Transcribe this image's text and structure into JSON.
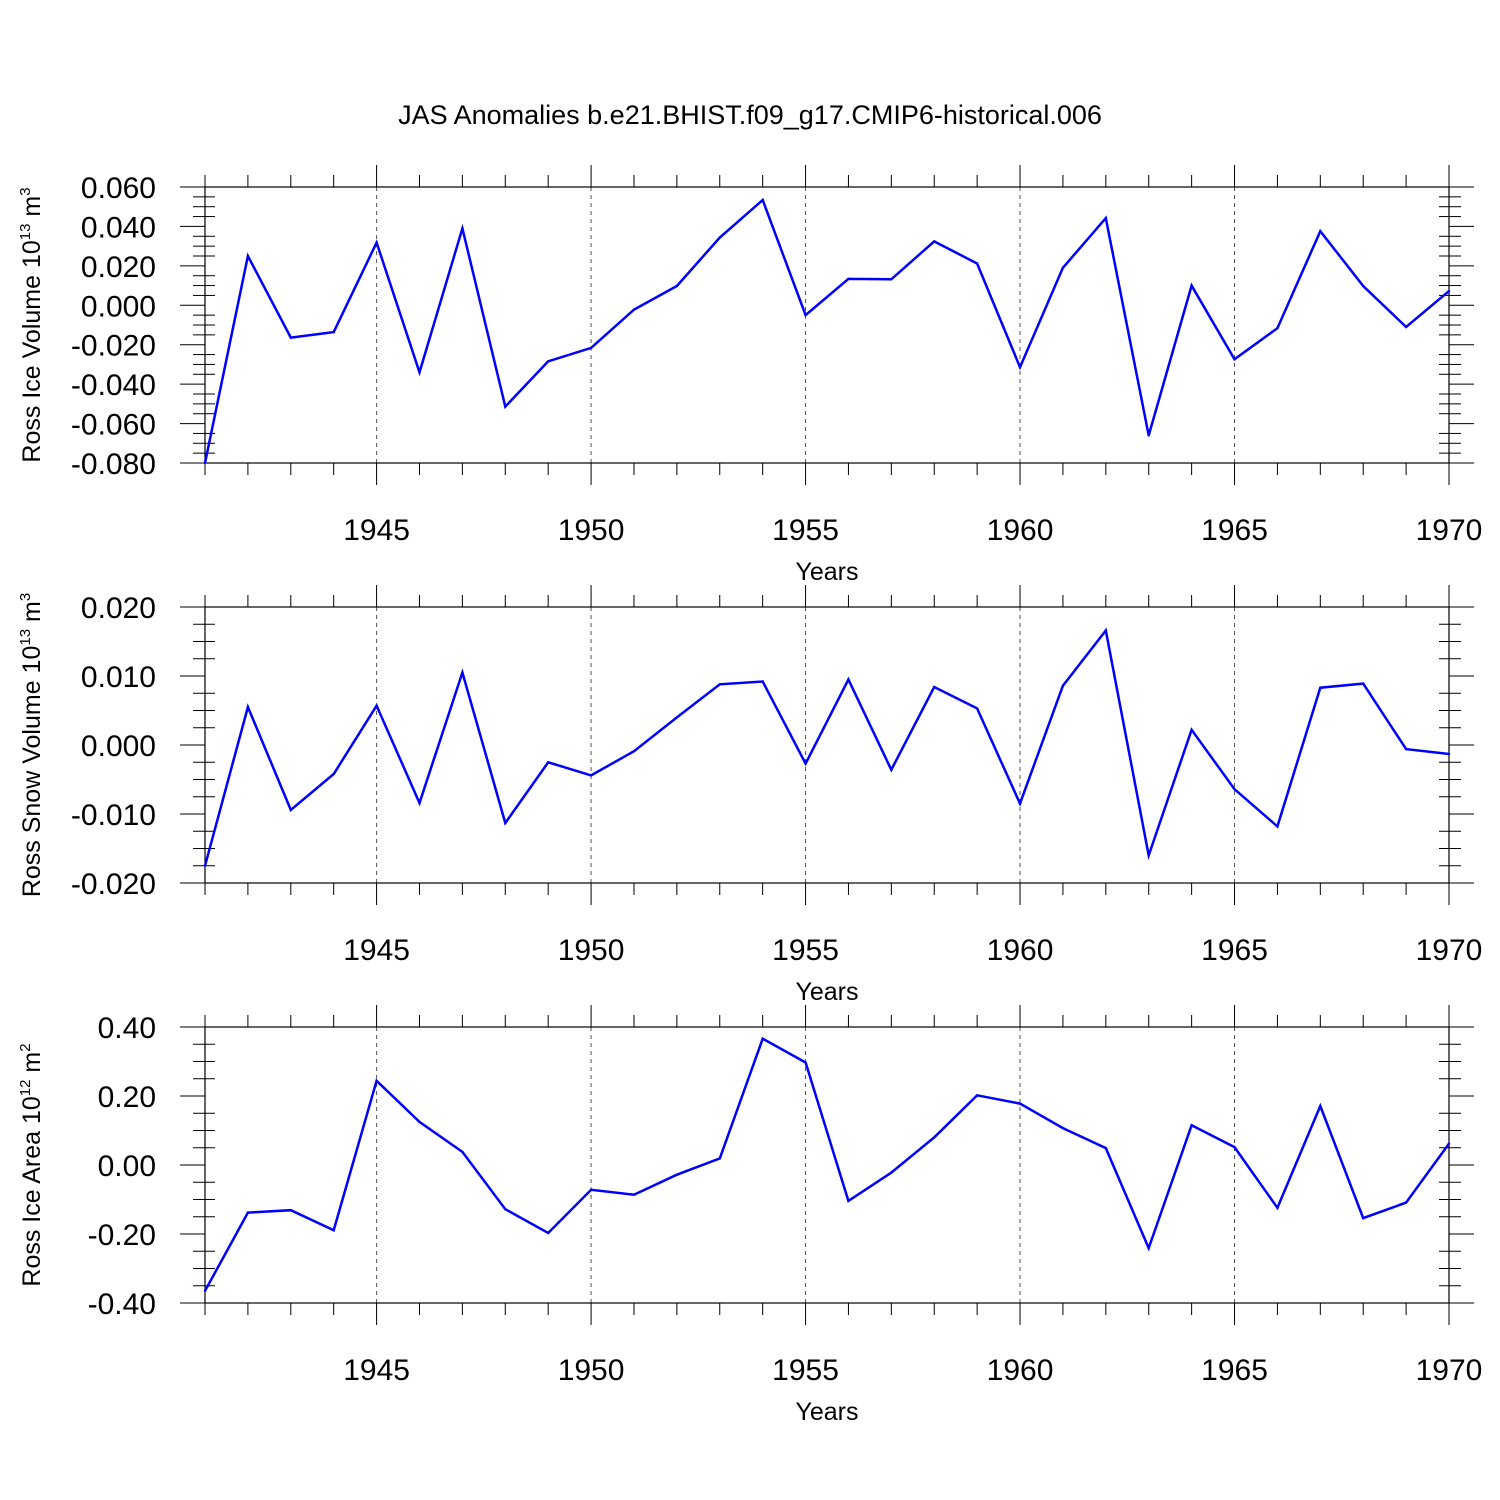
{
  "title": "JAS Anomalies b.e21.BHIST.f09_g17.CMIP6-historical.006",
  "colors": {
    "line": "#0000ff",
    "axis": "#000000",
    "grid": "#555555",
    "background": "#ffffff"
  },
  "chart_data": [
    {
      "type": "line",
      "ylabel": "Ross Ice Volume 10",
      "ylabel_exp": "13",
      "ylabel_unit": " m",
      "ylabel_unit_exp": "3",
      "xlabel": "Years",
      "xlim": [
        1941,
        1970
      ],
      "ylim": [
        -0.08,
        0.06
      ],
      "yticks": [
        -0.08,
        -0.06,
        -0.04,
        -0.02,
        0.0,
        0.02,
        0.04,
        0.06
      ],
      "ytick_labels": [
        "-0.080",
        "-0.060",
        "-0.040",
        "-0.020",
        "0.000",
        "0.020",
        "0.040",
        "0.060"
      ],
      "yminor_step": 0.005,
      "xticks": [
        1945,
        1950,
        1955,
        1960,
        1965,
        1970
      ],
      "xtick_labels": [
        "1945",
        "1950",
        "1955",
        "1960",
        "1965",
        "1970"
      ],
      "grid_x": [
        1945,
        1950,
        1955,
        1960,
        1965
      ],
      "series": [
        {
          "name": "Ross Ice Volume",
          "x": [
            1941,
            1942,
            1943,
            1944,
            1945,
            1946,
            1947,
            1948,
            1949,
            1950,
            1951,
            1952,
            1953,
            1954,
            1955,
            1956,
            1957,
            1958,
            1959,
            1960,
            1961,
            1962,
            1963,
            1964,
            1965,
            1966,
            1967,
            1968,
            1969,
            1970
          ],
          "values": [
            -0.08,
            0.025,
            -0.0164,
            -0.0136,
            0.0318,
            -0.034,
            0.039,
            -0.0514,
            -0.0284,
            -0.0216,
            -0.0022,
            0.0098,
            0.0344,
            0.0534,
            -0.005,
            0.0134,
            0.0132,
            0.0324,
            0.0212,
            -0.0314,
            0.019,
            0.0442,
            -0.066,
            0.01,
            -0.0274,
            -0.0116,
            0.0376,
            0.0098,
            -0.011,
            0.0072
          ]
        }
      ]
    },
    {
      "type": "line",
      "ylabel": "Ross Snow Volume 10",
      "ylabel_exp": "13",
      "ylabel_unit": " m",
      "ylabel_unit_exp": "3",
      "xlabel": "Years",
      "xlim": [
        1941,
        1970
      ],
      "ylim": [
        -0.02,
        0.02
      ],
      "yticks": [
        -0.02,
        -0.01,
        0.0,
        0.01,
        0.02
      ],
      "ytick_labels": [
        "-0.020",
        "-0.010",
        "0.000",
        "0.010",
        "0.020"
      ],
      "yminor_step": 0.0025,
      "xticks": [
        1945,
        1950,
        1955,
        1960,
        1965,
        1970
      ],
      "xtick_labels": [
        "1945",
        "1950",
        "1955",
        "1960",
        "1965",
        "1970"
      ],
      "grid_x": [
        1945,
        1950,
        1955,
        1960,
        1965
      ],
      "series": [
        {
          "name": "Ross Snow Volume",
          "x": [
            1941,
            1942,
            1943,
            1944,
            1945,
            1946,
            1947,
            1948,
            1949,
            1950,
            1951,
            1952,
            1953,
            1954,
            1955,
            1956,
            1957,
            1958,
            1959,
            1960,
            1961,
            1962,
            1963,
            1964,
            1965,
            1966,
            1967,
            1968,
            1969,
            1970
          ],
          "values": [
            -0.0175,
            0.0055,
            -0.0094,
            -0.0042,
            0.0057,
            -0.0084,
            0.0105,
            -0.0113,
            -0.0025,
            -0.0044,
            -0.0009,
            0.004,
            0.0088,
            0.0092,
            -0.0027,
            0.0095,
            -0.0036,
            0.0084,
            0.0053,
            -0.0085,
            0.0086,
            0.0166,
            -0.016,
            0.0022,
            -0.0064,
            -0.0118,
            0.0083,
            0.0089,
            -0.0006,
            -0.0013
          ]
        }
      ]
    },
    {
      "type": "line",
      "ylabel": "Ross Ice Area 10",
      "ylabel_exp": "12",
      "ylabel_unit": " m",
      "ylabel_unit_exp": "2",
      "xlabel": "Years",
      "xlim": [
        1941,
        1970
      ],
      "ylim": [
        -0.4,
        0.4
      ],
      "yticks": [
        -0.4,
        -0.2,
        0.0,
        0.2,
        0.4
      ],
      "ytick_labels": [
        "-0.40",
        "-0.20",
        "0.00",
        "0.20",
        "0.40"
      ],
      "yminor_step": 0.05,
      "xticks": [
        1945,
        1950,
        1955,
        1960,
        1965,
        1970
      ],
      "xtick_labels": [
        "1945",
        "1950",
        "1955",
        "1960",
        "1965",
        "1970"
      ],
      "grid_x": [
        1945,
        1950,
        1955,
        1960,
        1965
      ],
      "series": [
        {
          "name": "Ross Ice Area",
          "x": [
            1941,
            1942,
            1943,
            1944,
            1945,
            1946,
            1947,
            1948,
            1949,
            1950,
            1951,
            1952,
            1953,
            1954,
            1955,
            1956,
            1957,
            1958,
            1959,
            1960,
            1961,
            1962,
            1963,
            1964,
            1965,
            1966,
            1967,
            1968,
            1969,
            1970
          ],
          "values": [
            -0.365,
            -0.138,
            -0.131,
            -0.189,
            0.244,
            0.125,
            0.038,
            -0.128,
            -0.197,
            -0.072,
            -0.086,
            -0.028,
            0.019,
            0.366,
            0.297,
            -0.104,
            -0.022,
            0.08,
            0.202,
            0.178,
            0.107,
            0.049,
            -0.241,
            0.115,
            0.052,
            -0.124,
            0.171,
            -0.154,
            -0.109,
            0.062
          ]
        }
      ]
    }
  ]
}
